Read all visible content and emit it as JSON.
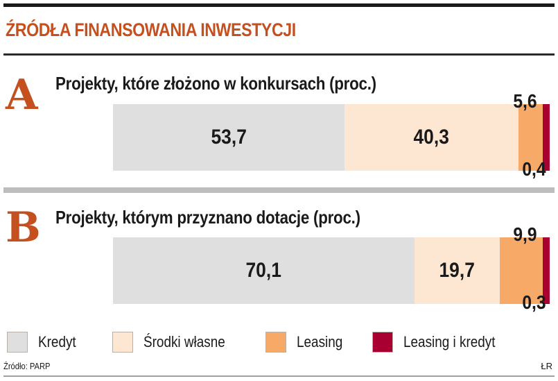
{
  "chart_data": {
    "type": "bar",
    "orientation": "horizontal-stacked-100",
    "title": "ŹRÓDŁA FINANSOWANIA INWESTYCJI",
    "series_names": [
      "Kredyt",
      "Środki własne",
      "Leasing",
      "Leasing i kredyt"
    ],
    "colors": [
      "#dfdfdf",
      "#fde6d2",
      "#f7a968",
      "#a80030"
    ],
    "panels": [
      {
        "letter": "A",
        "subtitle": "Projekty, które złożono w konkursach (proc.)",
        "values": [
          53.7,
          40.3,
          5.6,
          0.4
        ],
        "labels": [
          "53,7",
          "40,3",
          "5,6",
          "0,4"
        ]
      },
      {
        "letter": "B",
        "subtitle": "Projekty, którym przyznano dotacje (proc.)",
        "values": [
          70.1,
          19.7,
          9.9,
          0.3
        ],
        "labels": [
          "70,1",
          "19,7",
          "9,9",
          "0,3"
        ]
      }
    ],
    "legend_placement": "bottom",
    "source": "Źródło: PARP",
    "credit": "ŁR"
  }
}
